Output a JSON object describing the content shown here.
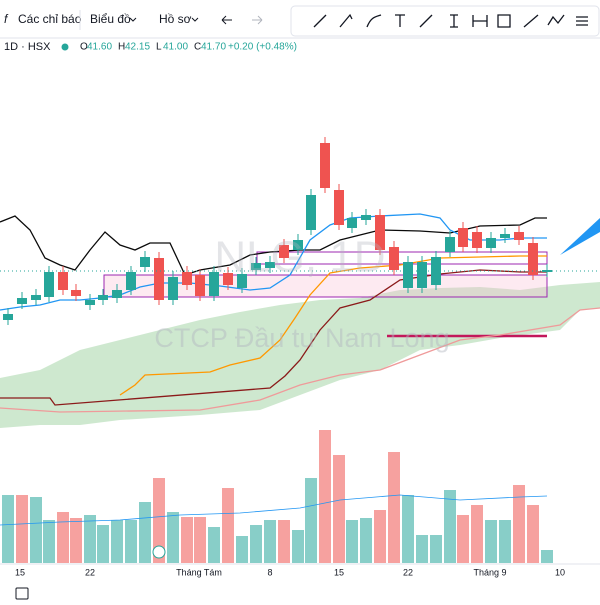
{
  "toolbar": {
    "indicators": "Các chỉ báo",
    "chart": "Biểu đồ",
    "profile": "Hồ sơ"
  },
  "symbol": {
    "interval": "1D · HSX",
    "ohlc": [
      {
        "key": "O",
        "value": "41.60"
      },
      {
        "key": "H",
        "value": "42.15"
      },
      {
        "key": "L",
        "value": "41.00"
      },
      {
        "key": "C",
        "value": "41.70"
      }
    ],
    "change": "+0.20 (+0.48%)"
  },
  "watermark": {
    "ticker": "NLG, 1D",
    "company": "CTCP Đầu tư Nam Long"
  },
  "x_axis": {
    "labels": [
      "15",
      "22",
      "Tháng Tám",
      "8",
      "15",
      "22",
      "Tháng 9",
      "10"
    ]
  }
}
